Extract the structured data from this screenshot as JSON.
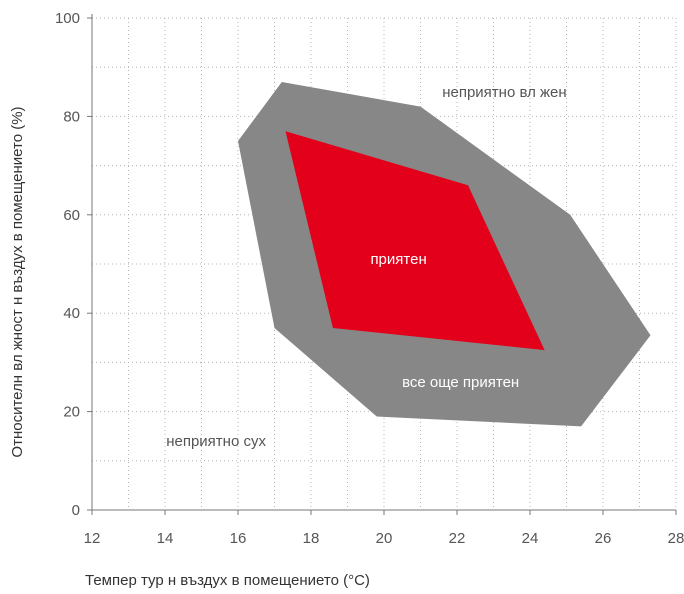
{
  "chart_data": {
    "type": "area",
    "title": "",
    "xlabel": "Темпер тур н въздух в помещението (°C)",
    "ylabel": "Относителн вл жност н въздух в помещението (%)",
    "xlim": [
      12,
      28
    ],
    "ylim": [
      0,
      100
    ],
    "xticks": [
      12,
      14,
      16,
      18,
      20,
      22,
      24,
      26,
      28
    ],
    "yticks": [
      0,
      20,
      40,
      60,
      80,
      100
    ],
    "grid": true,
    "series": [
      {
        "name": "все още приятен",
        "color": "#878787",
        "points": [
          [
            16.0,
            75
          ],
          [
            17.2,
            87
          ],
          [
            21.0,
            82
          ],
          [
            25.1,
            60
          ],
          [
            27.3,
            35.5
          ],
          [
            25.4,
            17
          ],
          [
            19.8,
            19
          ],
          [
            17.0,
            37
          ]
        ]
      },
      {
        "name": "приятен",
        "color": "#e2001a",
        "points": [
          [
            17.3,
            77
          ],
          [
            22.3,
            66
          ],
          [
            24.4,
            32.5
          ],
          [
            18.6,
            37
          ]
        ]
      }
    ],
    "annotations": [
      {
        "text": "неприятно вл жен",
        "x": 23.3,
        "y": 85,
        "color": "#555555"
      },
      {
        "text": "приятен",
        "x": 20.4,
        "y": 51,
        "color": "#ffffff"
      },
      {
        "text": "все още приятен",
        "x": 22.1,
        "y": 26,
        "color": "#ffffff"
      },
      {
        "text": "неприятно сух",
        "x": 15.4,
        "y": 14,
        "color": "#555555"
      }
    ]
  }
}
